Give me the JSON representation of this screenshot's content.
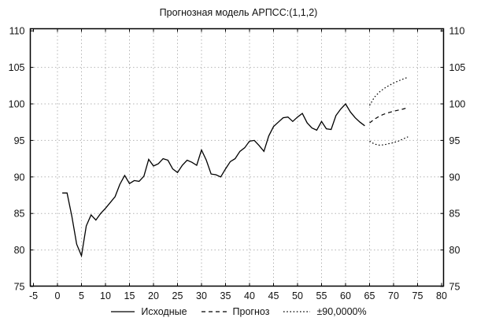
{
  "title": "Прогнозная модель АРПСС:(1,1,2)",
  "colors": {
    "line": "#000000",
    "grid": "#b4b4b4",
    "text": "#111111",
    "plot_background": "#ffffff",
    "figure_background": "#ffffff"
  },
  "legend": {
    "items": [
      {
        "label": "Исходные",
        "style": "solid"
      },
      {
        "label": "Прогноз",
        "style": "dashed"
      },
      {
        "label": "±90,0000%",
        "style": "dotted"
      }
    ]
  },
  "chart_data": {
    "type": "line",
    "title": "Прогнозная модель АРПСС:(1,1,2)",
    "xlabel": "",
    "ylabel": "",
    "grid": "dotted",
    "legend_position": "bottom",
    "x_axis": {
      "min": -5,
      "max": 80,
      "ticks": [
        -5,
        0,
        5,
        10,
        15,
        20,
        25,
        30,
        35,
        40,
        45,
        50,
        55,
        60,
        65,
        70,
        75,
        80
      ]
    },
    "y_axis": {
      "min": 75,
      "max": 110,
      "ticks": [
        75,
        80,
        85,
        90,
        95,
        100,
        105,
        110
      ],
      "mirrored_right": true
    },
    "series": [
      {
        "name": "Исходные",
        "style": "solid",
        "x_start": 1,
        "values": [
          87.8,
          87.8,
          84.6,
          80.8,
          79.2,
          83.3,
          84.8,
          84.1,
          85.0,
          85.7,
          86.5,
          87.3,
          89.0,
          90.2,
          89.1,
          89.5,
          89.4,
          90.1,
          92.4,
          91.5,
          91.8,
          92.5,
          92.3,
          91.1,
          90.6,
          91.6,
          92.3,
          92.0,
          91.6,
          93.7,
          92.3,
          90.4,
          90.3,
          90.0,
          91.1,
          92.1,
          92.5,
          93.5,
          94.0,
          94.9,
          95.0,
          94.3,
          93.5,
          95.6,
          96.9,
          97.5,
          98.1,
          98.2,
          97.6,
          98.2,
          98.7,
          97.4,
          96.7,
          96.4,
          97.6,
          96.6,
          96.5,
          98.4,
          99.3,
          100.0,
          98.9,
          98.1,
          97.5,
          97.0
        ]
      },
      {
        "name": "Прогноз",
        "style": "dashed",
        "x_start": 65,
        "values": [
          97.4,
          97.9,
          98.3,
          98.6,
          98.8,
          99.0,
          99.15,
          99.3,
          99.5
        ]
      },
      {
        "name": "±90,0000% верхняя",
        "style": "dotted",
        "x_start": 65,
        "values": [
          99.8,
          100.9,
          101.6,
          102.1,
          102.5,
          102.85,
          103.15,
          103.4,
          103.65
        ]
      },
      {
        "name": "±90,0000% нижняя",
        "style": "dotted",
        "x_start": 65,
        "values": [
          94.9,
          94.5,
          94.35,
          94.4,
          94.55,
          94.7,
          94.9,
          95.2,
          95.5
        ]
      }
    ]
  }
}
